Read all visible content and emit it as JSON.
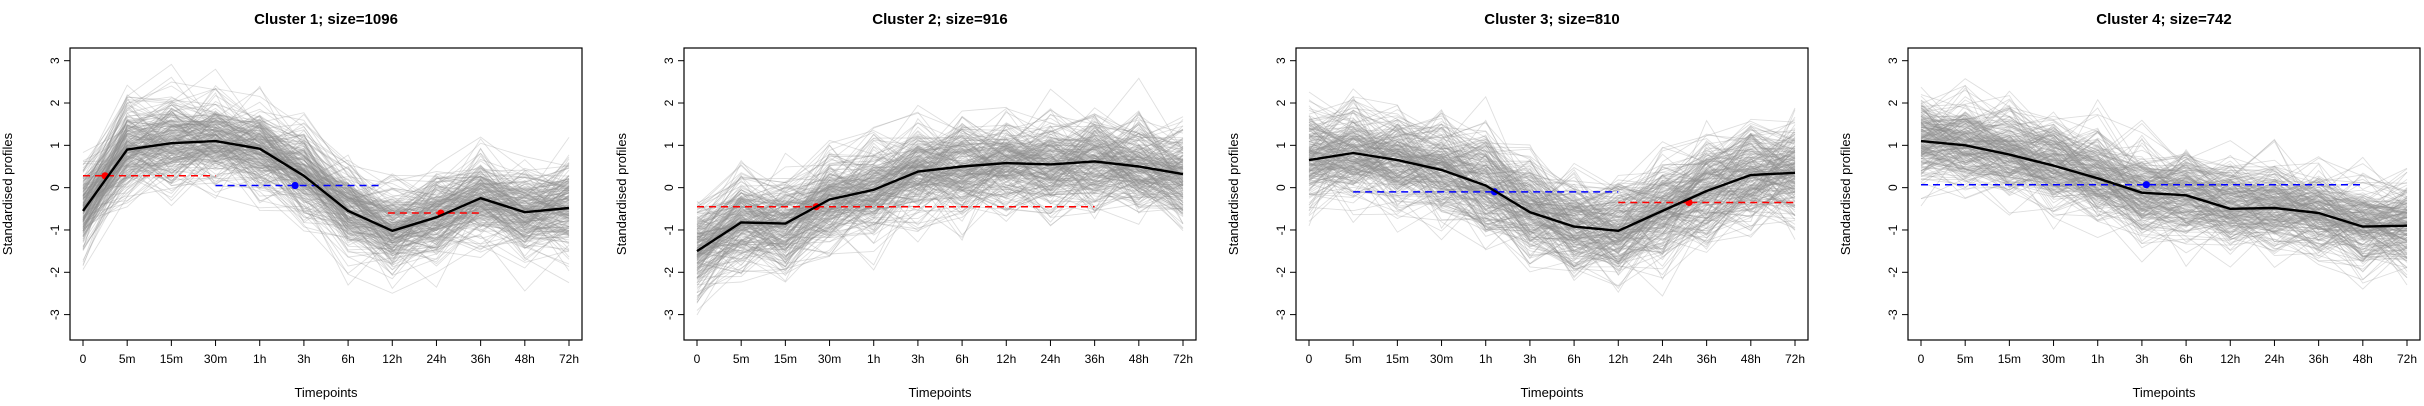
{
  "chart_data": [
    {
      "type": "line",
      "title": "Cluster 1; size=1096",
      "xlabel": "Timepoints",
      "ylabel": "Standardised profiles",
      "ylim": [
        -3.6,
        3.3
      ],
      "yticks": [
        -3,
        -2,
        -1,
        0,
        1,
        2,
        3
      ],
      "categories": [
        "0",
        "5m",
        "15m",
        "30m",
        "1h",
        "3h",
        "6h",
        "12h",
        "24h",
        "36h",
        "48h",
        "72h"
      ],
      "center": [
        -0.55,
        0.9,
        1.05,
        1.1,
        0.92,
        0.28,
        -0.55,
        -1.02,
        -0.7,
        -0.25,
        -0.58,
        -0.48
      ],
      "spread": 0.75,
      "segments": [
        {
          "color": "#ff0000",
          "x0": 0,
          "x1": 3,
          "y": 0.28,
          "px": 0.5
        },
        {
          "color": "#0000ff",
          "x0": 3,
          "x1": 6.8,
          "y": 0.05,
          "px": 4.8
        },
        {
          "color": "#ff0000",
          "x0": 6.9,
          "x1": 9,
          "y": -0.6,
          "px": 8.1
        }
      ]
    },
    {
      "type": "line",
      "title": "Cluster 2; size=916",
      "xlabel": "Timepoints",
      "ylabel": "Standardised profiles",
      "ylim": [
        -3.6,
        3.3
      ],
      "yticks": [
        -3,
        -2,
        -1,
        0,
        1,
        2,
        3
      ],
      "categories": [
        "0",
        "5m",
        "15m",
        "30m",
        "1h",
        "3h",
        "6h",
        "12h",
        "24h",
        "36h",
        "48h",
        "72h"
      ],
      "center": [
        -1.5,
        -0.82,
        -0.85,
        -0.28,
        -0.05,
        0.38,
        0.5,
        0.58,
        0.55,
        0.62,
        0.5,
        0.32
      ],
      "spread": 0.8,
      "segments": [
        {
          "color": "#ff0000",
          "x0": 0,
          "x1": 9,
          "y": -0.45,
          "px": 2.7
        }
      ]
    },
    {
      "type": "line",
      "title": "Cluster 3; size=810",
      "xlabel": "Timepoints",
      "ylabel": "Standardised profiles",
      "ylim": [
        -3.6,
        3.3
      ],
      "yticks": [
        -3,
        -2,
        -1,
        0,
        1,
        2,
        3
      ],
      "categories": [
        "0",
        "5m",
        "15m",
        "30m",
        "1h",
        "3h",
        "6h",
        "12h",
        "24h",
        "36h",
        "48h",
        "72h"
      ],
      "center": [
        0.65,
        0.82,
        0.65,
        0.42,
        0.05,
        -0.58,
        -0.92,
        -1.02,
        -0.55,
        -0.08,
        0.3,
        0.35
      ],
      "spread": 0.85,
      "segments": [
        {
          "color": "#0000ff",
          "x0": 1,
          "x1": 7,
          "y": -0.1,
          "px": 4.2
        },
        {
          "color": "#ff0000",
          "x0": 7,
          "x1": 11,
          "y": -0.35,
          "px": 8.6
        }
      ]
    },
    {
      "type": "line",
      "title": "Cluster 4; size=742",
      "xlabel": "Timepoints",
      "ylabel": "Standardised profiles",
      "ylim": [
        -3.6,
        3.3
      ],
      "yticks": [
        -3,
        -2,
        -1,
        0,
        1,
        2,
        3
      ],
      "categories": [
        "0",
        "5m",
        "15m",
        "30m",
        "1h",
        "3h",
        "6h",
        "12h",
        "24h",
        "36h",
        "48h",
        "72h"
      ],
      "center": [
        1.1,
        1.0,
        0.78,
        0.52,
        0.22,
        -0.12,
        -0.18,
        -0.5,
        -0.48,
        -0.6,
        -0.92,
        -0.9
      ],
      "spread": 0.72,
      "segments": [
        {
          "color": "#0000ff",
          "x0": 0,
          "x1": 10,
          "y": 0.07,
          "px": 5.1
        }
      ]
    }
  ]
}
